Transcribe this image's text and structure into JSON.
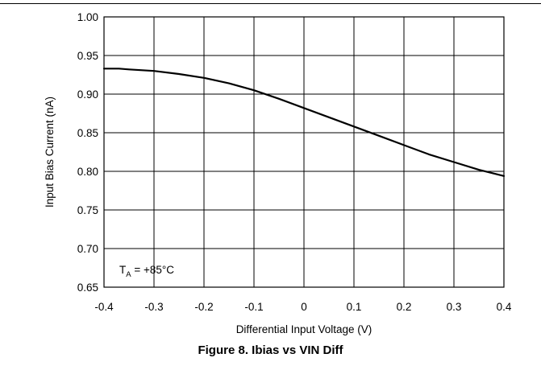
{
  "caption": "Figure 8. Ibias vs VIN Diff",
  "chart_data": {
    "type": "line",
    "xlabel": "Differential Input Voltage (V)",
    "ylabel": "Input Bias Current (nA)",
    "xlim": [
      -0.4,
      0.4
    ],
    "ylim": [
      0.65,
      1.0
    ],
    "x_ticks": [
      "-0.4",
      "-0.3",
      "-0.2",
      "-0.1",
      "0",
      "0.1",
      "0.2",
      "0.3",
      "0.4"
    ],
    "y_ticks": [
      "0.65",
      "0.70",
      "0.75",
      "0.80",
      "0.85",
      "0.90",
      "0.95",
      "1.00"
    ],
    "grid": true,
    "annotation": {
      "main": "T",
      "sub": "A",
      "rest": " = +85°C"
    },
    "series": [
      {
        "x": [
          -0.4,
          -0.37,
          -0.35,
          -0.3,
          -0.25,
          -0.2,
          -0.15,
          -0.1,
          -0.05,
          0.0,
          0.05,
          0.1,
          0.15,
          0.2,
          0.25,
          0.3,
          0.35,
          0.4
        ],
        "values": [
          0.933,
          0.933,
          0.932,
          0.93,
          0.926,
          0.921,
          0.914,
          0.905,
          0.894,
          0.882,
          0.87,
          0.858,
          0.846,
          0.834,
          0.822,
          0.812,
          0.802,
          0.794
        ]
      }
    ],
    "color": "#000000"
  }
}
